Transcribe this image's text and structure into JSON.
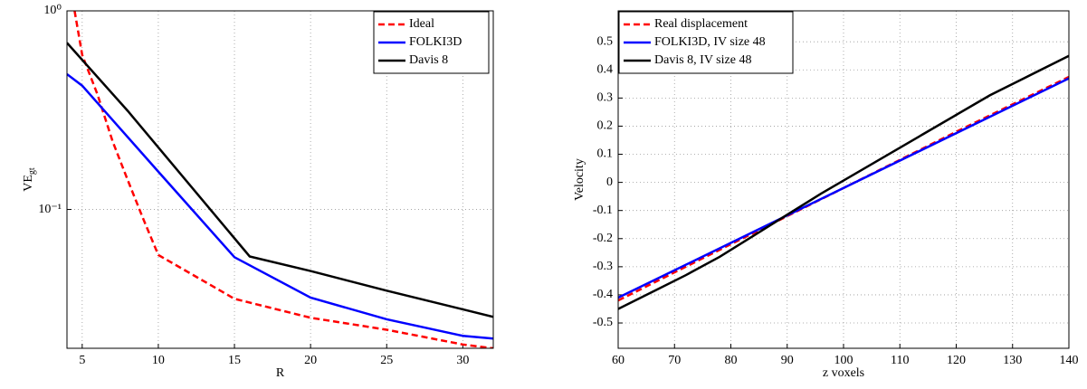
{
  "chart_data": [
    {
      "type": "line",
      "xlabel": "R",
      "ylabel": "VE",
      "ylabel_sub": "gt",
      "log_y": true,
      "grid": true,
      "legend": "upper right",
      "xlim": [
        4,
        32
      ],
      "xticks": [
        5,
        10,
        15,
        20,
        25,
        30
      ],
      "ylim": [
        0.02,
        1
      ],
      "yticks": [
        {
          "value": 0.1,
          "label": "10⁻¹"
        },
        {
          "value": 1,
          "label": "10⁰"
        }
      ],
      "series": [
        {
          "name": "Ideal",
          "color": "#ff0000",
          "line_style": "dashed",
          "x": [
            4.5,
            5,
            6,
            7,
            8,
            9,
            10,
            15,
            20,
            25,
            30,
            32
          ],
          "values": [
            1.0,
            0.6,
            0.38,
            0.22,
            0.14,
            0.09,
            0.059,
            0.0355,
            0.0285,
            0.0248,
            0.0209,
            0.02
          ]
        },
        {
          "name": "FOLKI3D",
          "color": "#0000ff",
          "line_style": "solid",
          "x": [
            4,
            5,
            10,
            15,
            20,
            25,
            30,
            32
          ],
          "values": [
            0.48,
            0.42,
            0.155,
            0.0575,
            0.036,
            0.028,
            0.0231,
            0.0224
          ]
        },
        {
          "name": "Davis 8",
          "color": "#000000",
          "line_style": "solid",
          "x": [
            4,
            8,
            16,
            20,
            25,
            32
          ],
          "values": [
            0.69,
            0.313,
            0.058,
            0.049,
            0.039,
            0.0288
          ]
        }
      ]
    },
    {
      "type": "line",
      "xlabel": "z voxels",
      "ylabel": "Velocity",
      "log_y": false,
      "grid": true,
      "legend": "upper left",
      "xlim": [
        60,
        140
      ],
      "xticks": [
        60,
        70,
        80,
        90,
        100,
        110,
        120,
        130,
        140
      ],
      "ylim": [
        -0.59,
        0.61
      ],
      "yticks": [
        -0.5,
        -0.4,
        -0.3,
        -0.2,
        -0.1,
        0,
        0.1,
        0.2,
        0.3,
        0.4,
        0.5
      ],
      "series": [
        {
          "name": "Real displacement",
          "color": "#ff0000",
          "line_style": "dashed",
          "x": [
            60,
            80,
            100,
            120,
            140
          ],
          "values": [
            -0.42,
            -0.22,
            -0.02,
            0.18,
            0.375
          ]
        },
        {
          "name": "FOLKI3D, IV size 48",
          "color": "#0000ff",
          "line_style": "solid",
          "x": [
            60,
            140
          ],
          "values": [
            -0.41,
            0.37
          ]
        },
        {
          "name": "Davis 8, IV size 48",
          "color": "#000000",
          "line_style": "solid",
          "x": [
            60,
            66,
            72,
            78,
            84,
            90,
            96,
            102,
            108,
            114,
            120,
            126,
            132,
            140
          ],
          "values": [
            -0.45,
            -0.39,
            -0.33,
            -0.265,
            -0.19,
            -0.115,
            -0.04,
            0.03,
            0.1,
            0.17,
            0.24,
            0.31,
            0.37,
            0.45
          ]
        }
      ]
    }
  ]
}
